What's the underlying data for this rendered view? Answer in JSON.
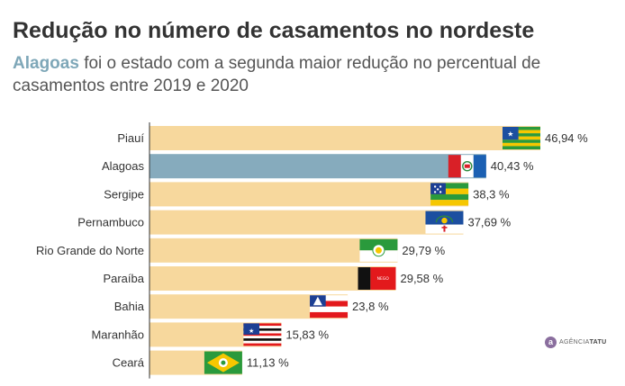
{
  "header": {
    "title": "Redução no número de casamentos no nordeste",
    "subtitle_highlight": "Alagoas",
    "subtitle_rest": " foi o estado com a segunda maior redução no percentual de casamentos entre 2019 e 2020"
  },
  "logo": {
    "prefix": "AGÊNCIA",
    "suffix": "TATU"
  },
  "colors": {
    "bar": "#f7d89d",
    "highlight": "#86abbd",
    "axis": "#333333"
  },
  "chart_data": {
    "type": "bar",
    "orientation": "horizontal",
    "title": "Redução no número de casamentos no nordeste",
    "xlabel": "",
    "ylabel": "",
    "xlim": [
      0,
      50
    ],
    "categories": [
      "Piauí",
      "Alagoas",
      "Sergipe",
      "Pernambuco",
      "Rio Grande do Norte",
      "Paraíba",
      "Bahia",
      "Maranhão",
      "Ceará"
    ],
    "values": [
      46.94,
      40.43,
      38.3,
      37.69,
      29.79,
      29.58,
      23.8,
      15.83,
      11.13
    ],
    "labels": [
      "46,94 %",
      "40,43 %",
      "38,3 %",
      "37,69 %",
      "29,79 %",
      "29,58 %",
      "23,8 %",
      "15,83 %",
      "11,13 %"
    ],
    "highlight": "Alagoas",
    "flags": [
      "piaui-flag",
      "alagoas-flag",
      "sergipe-flag",
      "pernambuco-flag",
      "rio-grande-do-norte-flag",
      "paraiba-flag",
      "bahia-flag",
      "maranhao-flag",
      "ceara-flag"
    ]
  }
}
